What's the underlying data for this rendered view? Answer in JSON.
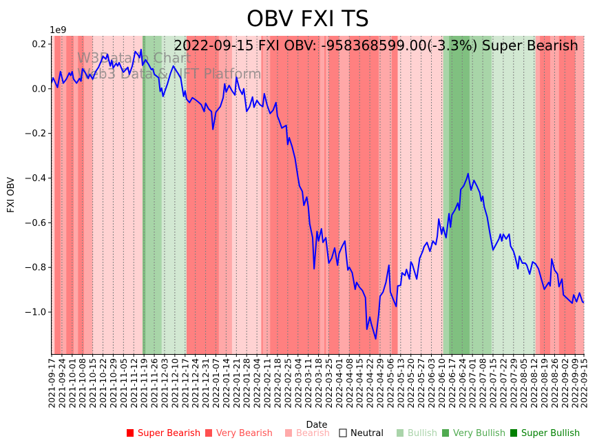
{
  "chart_data": {
    "type": "line",
    "title": "OBV FXI TS",
    "annotation": "2022-09-15 FXI OBV: -958368599.00(-3.3%) Super Bearish",
    "watermark": [
      "W3Data.io Chart",
      "Web3 Data & NFT Platform"
    ],
    "xlabel": "Date",
    "ylabel": "FXI OBV",
    "y_scale_label": "1e9",
    "x_start": "2021-09-17",
    "x_unit": "days since x_start",
    "xlim": [
      0,
      363
    ],
    "ylim": [
      -1.188,
      0.237
    ],
    "y_ticks": [
      0.2,
      0.0,
      -0.2,
      -0.4,
      -0.6,
      -0.8,
      -1.0
    ],
    "y_tick_labels": [
      "0.2",
      "0.0",
      "−0.2",
      "−0.4",
      "−0.6",
      "−0.8",
      "−1.0"
    ],
    "x_tick_labels": [
      "2021-09-17",
      "2021-09-24",
      "2021-10-01",
      "2021-10-08",
      "2021-10-15",
      "2021-10-22",
      "2021-10-29",
      "2021-11-05",
      "2021-11-12",
      "2021-11-19",
      "2021-11-26",
      "2021-12-03",
      "2021-12-10",
      "2021-12-17",
      "2021-12-24",
      "2021-12-31",
      "2022-01-07",
      "2022-01-14",
      "2022-01-21",
      "2022-01-28",
      "2022-02-04",
      "2022-02-11",
      "2022-02-18",
      "2022-02-25",
      "2022-03-04",
      "2022-03-11",
      "2022-03-18",
      "2022-03-25",
      "2022-04-01",
      "2022-04-08",
      "2022-04-15",
      "2022-04-22",
      "2022-04-29",
      "2022-05-06",
      "2022-05-13",
      "2022-05-20",
      "2022-05-27",
      "2022-06-03",
      "2022-06-10",
      "2022-06-17",
      "2022-06-24",
      "2022-07-01",
      "2022-07-08",
      "2022-07-15",
      "2022-07-22",
      "2022-07-29",
      "2022-08-05",
      "2022-08-12",
      "2022-08-19",
      "2022-08-26",
      "2022-09-02",
      "2022-09-09",
      "2022-09-15"
    ],
    "grid": "x dotted",
    "series": [
      {
        "name": "OBV",
        "color": "#0000ff",
        "points": [
          [
            0,
            0.028
          ],
          [
            1,
            0.049
          ],
          [
            4,
            0.006
          ],
          [
            6,
            0.077
          ],
          [
            8,
            0.025
          ],
          [
            10,
            0.043
          ],
          [
            12,
            0.071
          ],
          [
            13,
            0.059
          ],
          [
            14,
            0.077
          ],
          [
            15,
            0.043
          ],
          [
            17,
            0.025
          ],
          [
            19,
            0.046
          ],
          [
            20,
            0.034
          ],
          [
            21,
            0.09
          ],
          [
            23,
            0.071
          ],
          [
            25,
            0.046
          ],
          [
            26,
            0.065
          ],
          [
            28,
            0.043
          ],
          [
            30,
            0.077
          ],
          [
            32,
            0.096
          ],
          [
            34,
            0.127
          ],
          [
            35,
            0.145
          ],
          [
            37,
            0.133
          ],
          [
            38,
            0.154
          ],
          [
            40,
            0.102
          ],
          [
            41,
            0.127
          ],
          [
            42,
            0.093
          ],
          [
            44,
            0.114
          ],
          [
            45,
            0.102
          ],
          [
            46,
            0.117
          ],
          [
            48,
            0.086
          ],
          [
            49,
            0.074
          ],
          [
            52,
            0.096
          ],
          [
            53,
            0.065
          ],
          [
            55,
            0.102
          ],
          [
            57,
            0.167
          ],
          [
            59,
            0.151
          ],
          [
            60,
            0.139
          ],
          [
            61,
            0.176
          ],
          [
            62,
            0.105
          ],
          [
            64,
            0.13
          ],
          [
            66,
            0.111
          ],
          [
            68,
            0.086
          ],
          [
            69,
            0.09
          ],
          [
            70,
            0.065
          ],
          [
            73,
            0.049
          ],
          [
            74,
            -0.012
          ],
          [
            75,
            0.003
          ],
          [
            76,
            -0.034
          ],
          [
            77,
            -0.015
          ],
          [
            79,
            0.022
          ],
          [
            81,
            0.068
          ],
          [
            83,
            0.102
          ],
          [
            85,
            0.08
          ],
          [
            86,
            0.071
          ],
          [
            88,
            0.049
          ],
          [
            90,
            -0.034
          ],
          [
            91,
            -0.009
          ],
          [
            92,
            -0.046
          ],
          [
            94,
            -0.062
          ],
          [
            96,
            -0.04
          ],
          [
            98,
            -0.049
          ],
          [
            100,
            -0.059
          ],
          [
            102,
            -0.071
          ],
          [
            104,
            -0.102
          ],
          [
            105,
            -0.065
          ],
          [
            107,
            -0.09
          ],
          [
            109,
            -0.102
          ],
          [
            110,
            -0.182
          ],
          [
            112,
            -0.105
          ],
          [
            115,
            -0.08
          ],
          [
            117,
            -0.04
          ],
          [
            118,
            0.022
          ],
          [
            119,
            -0.015
          ],
          [
            121,
            0.015
          ],
          [
            123,
            -0.009
          ],
          [
            125,
            -0.028
          ],
          [
            126,
            0.052
          ],
          [
            128,
            0.0
          ],
          [
            130,
            -0.025
          ],
          [
            131,
            0.0
          ],
          [
            133,
            -0.102
          ],
          [
            135,
            -0.08
          ],
          [
            137,
            -0.037
          ],
          [
            138,
            -0.083
          ],
          [
            140,
            -0.052
          ],
          [
            142,
            -0.071
          ],
          [
            144,
            -0.08
          ],
          [
            145,
            -0.022
          ],
          [
            147,
            -0.074
          ],
          [
            149,
            -0.111
          ],
          [
            151,
            -0.096
          ],
          [
            153,
            -0.062
          ],
          [
            154,
            -0.123
          ],
          [
            155,
            -0.139
          ],
          [
            157,
            -0.176
          ],
          [
            160,
            -0.164
          ],
          [
            161,
            -0.25
          ],
          [
            162,
            -0.219
          ],
          [
            164,
            -0.259
          ],
          [
            166,
            -0.312
          ],
          [
            168,
            -0.398
          ],
          [
            169,
            -0.435
          ],
          [
            171,
            -0.46
          ],
          [
            172,
            -0.522
          ],
          [
            174,
            -0.485
          ],
          [
            175,
            -0.528
          ],
          [
            176,
            -0.605
          ],
          [
            178,
            -0.667
          ],
          [
            179,
            -0.806
          ],
          [
            181,
            -0.639
          ],
          [
            182,
            -0.682
          ],
          [
            184,
            -0.627
          ],
          [
            185,
            -0.688
          ],
          [
            187,
            -0.667
          ],
          [
            189,
            -0.781
          ],
          [
            191,
            -0.759
          ],
          [
            193,
            -0.713
          ],
          [
            195,
            -0.79
          ],
          [
            196,
            -0.738
          ],
          [
            198,
            -0.707
          ],
          [
            200,
            -0.682
          ],
          [
            201,
            -0.75
          ],
          [
            202,
            -0.812
          ],
          [
            203,
            -0.799
          ],
          [
            205,
            -0.824
          ],
          [
            207,
            -0.898
          ],
          [
            208,
            -0.867
          ],
          [
            210,
            -0.889
          ],
          [
            212,
            -0.904
          ],
          [
            214,
            -0.935
          ],
          [
            215,
            -1.077
          ],
          [
            217,
            -1.022
          ],
          [
            218,
            -1.052
          ],
          [
            221,
            -1.12
          ],
          [
            223,
            -1.012
          ],
          [
            224,
            -0.929
          ],
          [
            226,
            -0.91
          ],
          [
            228,
            -0.867
          ],
          [
            230,
            -0.79
          ],
          [
            231,
            -0.91
          ],
          [
            233,
            -0.944
          ],
          [
            235,
            -0.975
          ],
          [
            236,
            -0.883
          ],
          [
            238,
            -0.88
          ],
          [
            239,
            -0.824
          ],
          [
            241,
            -0.836
          ],
          [
            242,
            -0.809
          ],
          [
            244,
            -0.852
          ],
          [
            245,
            -0.775
          ],
          [
            246,
            -0.787
          ],
          [
            249,
            -0.852
          ],
          [
            251,
            -0.759
          ],
          [
            253,
            -0.728
          ],
          [
            254,
            -0.707
          ],
          [
            256,
            -0.688
          ],
          [
            258,
            -0.728
          ],
          [
            260,
            -0.682
          ],
          [
            262,
            -0.698
          ],
          [
            263,
            -0.66
          ],
          [
            264,
            -0.583
          ],
          [
            266,
            -0.651
          ],
          [
            267,
            -0.62
          ],
          [
            268,
            -0.645
          ],
          [
            269,
            -0.667
          ],
          [
            271,
            -0.559
          ],
          [
            272,
            -0.62
          ],
          [
            273,
            -0.565
          ],
          [
            275,
            -0.543
          ],
          [
            277,
            -0.512
          ],
          [
            278,
            -0.543
          ],
          [
            279,
            -0.451
          ],
          [
            281,
            -0.435
          ],
          [
            283,
            -0.404
          ],
          [
            284,
            -0.38
          ],
          [
            286,
            -0.454
          ],
          [
            288,
            -0.41
          ],
          [
            290,
            -0.435
          ],
          [
            292,
            -0.466
          ],
          [
            293,
            -0.503
          ],
          [
            294,
            -0.481
          ],
          [
            295,
            -0.528
          ],
          [
            297,
            -0.574
          ],
          [
            299,
            -0.651
          ],
          [
            301,
            -0.722
          ],
          [
            303,
            -0.698
          ],
          [
            305,
            -0.673
          ],
          [
            306,
            -0.651
          ],
          [
            307,
            -0.682
          ],
          [
            308,
            -0.651
          ],
          [
            310,
            -0.673
          ],
          [
            312,
            -0.651
          ],
          [
            313,
            -0.704
          ],
          [
            315,
            -0.728
          ],
          [
            316,
            -0.75
          ],
          [
            318,
            -0.806
          ],
          [
            319,
            -0.75
          ],
          [
            321,
            -0.781
          ],
          [
            323,
            -0.781
          ],
          [
            324,
            -0.79
          ],
          [
            326,
            -0.83
          ],
          [
            328,
            -0.775
          ],
          [
            330,
            -0.784
          ],
          [
            332,
            -0.806
          ],
          [
            334,
            -0.852
          ],
          [
            336,
            -0.898
          ],
          [
            338,
            -0.877
          ],
          [
            339,
            -0.867
          ],
          [
            340,
            -0.883
          ],
          [
            341,
            -0.762
          ],
          [
            343,
            -0.812
          ],
          [
            345,
            -0.83
          ],
          [
            346,
            -0.886
          ],
          [
            348,
            -0.852
          ],
          [
            349,
            -0.923
          ],
          [
            351,
            -0.935
          ],
          [
            354,
            -0.954
          ],
          [
            355,
            -0.96
          ],
          [
            356,
            -0.923
          ],
          [
            358,
            -0.954
          ],
          [
            360,
            -0.914
          ],
          [
            362,
            -0.954
          ],
          [
            363,
            -0.958
          ]
        ]
      }
    ],
    "sentiment_bands": [
      [
        0,
        2,
        "Bearish"
      ],
      [
        2,
        6,
        "Super Bearish"
      ],
      [
        6,
        10,
        "Very Bearish"
      ],
      [
        10,
        15,
        "Super Bearish"
      ],
      [
        15,
        18,
        "Very Bearish"
      ],
      [
        18,
        22,
        "Super Bearish"
      ],
      [
        22,
        28,
        "Very Bearish"
      ],
      [
        28,
        62,
        "Bearish"
      ],
      [
        62,
        64,
        "Super Bullish"
      ],
      [
        64,
        75,
        "Very Bullish"
      ],
      [
        75,
        92,
        "Bullish"
      ],
      [
        92,
        114,
        "Super Bearish"
      ],
      [
        114,
        123,
        "Very Bearish"
      ],
      [
        123,
        143,
        "Bearish"
      ],
      [
        143,
        144,
        "Super Bearish"
      ],
      [
        144,
        149,
        "Very Bearish"
      ],
      [
        149,
        183,
        "Super Bearish"
      ],
      [
        183,
        186,
        "Very Bearish"
      ],
      [
        186,
        187,
        "Super Bearish"
      ],
      [
        187,
        189,
        "Very Bearish"
      ],
      [
        189,
        196,
        "Super Bearish"
      ],
      [
        196,
        203,
        "Very Bearish"
      ],
      [
        203,
        223,
        "Super Bearish"
      ],
      [
        223,
        232,
        "Very Bearish"
      ],
      [
        232,
        236,
        "Super Bearish"
      ],
      [
        236,
        267,
        "Bearish"
      ],
      [
        267,
        271,
        "Very Bullish"
      ],
      [
        271,
        285,
        "Super Bullish"
      ],
      [
        285,
        300,
        "Very Bullish"
      ],
      [
        300,
        330,
        "Bullish"
      ],
      [
        330,
        333,
        "Very Bearish"
      ],
      [
        333,
        340,
        "Super Bearish"
      ],
      [
        340,
        346,
        "Very Bearish"
      ],
      [
        346,
        357,
        "Super Bearish"
      ],
      [
        357,
        363,
        "Very Bearish"
      ]
    ],
    "band_colors": {
      "Super Bearish": "#ff8080",
      "Very Bearish": "#ffa8a8",
      "Bearish": "#ffd2d2",
      "Neutral": "#ffffff",
      "Bullish": "#d2e8d2",
      "Very Bullish": "#a8d5a8",
      "Super Bullish": "#80c080"
    },
    "legend": {
      "placement": "bottom",
      "entries": [
        {
          "label": "Super Bearish",
          "color": "#ff0000",
          "text_color": "#ff0000"
        },
        {
          "label": "Very Bearish",
          "color": "#ff5050",
          "text_color": "#ff5050"
        },
        {
          "label": "Bearish",
          "color": "#ffaaaa",
          "text_color": "#ffaaaa"
        },
        {
          "label": "Neutral",
          "color": "#ffffff",
          "text_color": "#000000"
        },
        {
          "label": "Bullish",
          "color": "#aad4aa",
          "text_color": "#aad4aa"
        },
        {
          "label": "Very Bullish",
          "color": "#50aa50",
          "text_color": "#50aa50"
        },
        {
          "label": "Super Bullish",
          "color": "#008000",
          "text_color": "#008000"
        }
      ]
    }
  }
}
